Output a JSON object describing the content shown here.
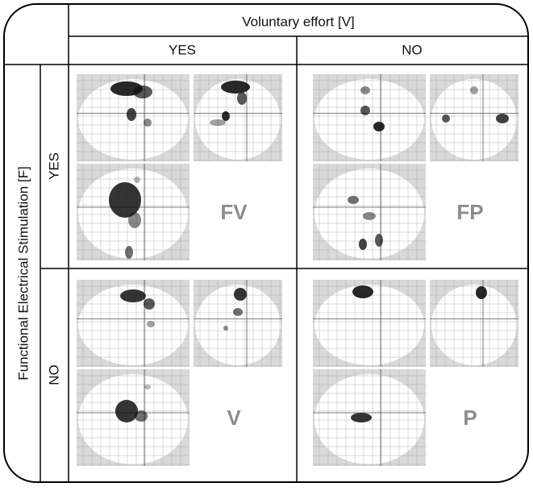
{
  "header": {
    "title": "Voluntary effort [V]",
    "columns": [
      "YES",
      "NO"
    ]
  },
  "rows_header": {
    "title": "Functional Electrical Stimulation [F]",
    "rows": [
      "YES",
      "NO"
    ]
  },
  "cells": [
    [
      "FV",
      "FP"
    ],
    [
      "V",
      "P"
    ]
  ]
}
